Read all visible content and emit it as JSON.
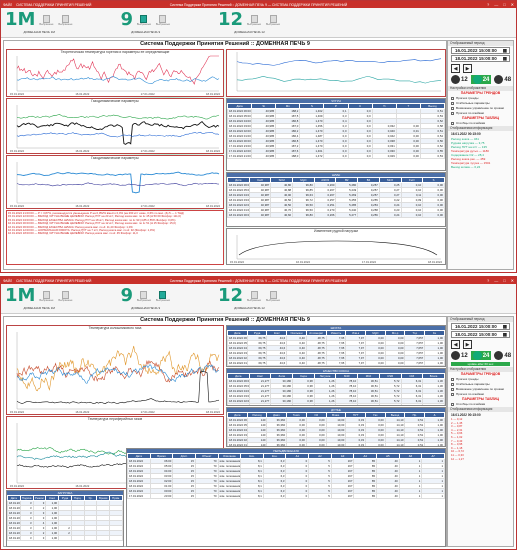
{
  "app": {
    "menu_tab": "ФАЙЛ",
    "doc_tab": "СИСТЕМА ПОДДЕРЖКИ ПРИНЯТИЯ РЕШЕНИЙ",
    "window_title": "Система Поддержки Принятия Решений :: ДОМЕННАЯ ПЕЧЬ 9 — СИСТЕМА ПОДДЕРЖКИ ПРИНЯТИЯ РЕШЕНИЙ",
    "controls": [
      "?",
      "—",
      "□",
      "✕"
    ]
  },
  "ribbon": {
    "groups": [
      {
        "num": "1M",
        "label": "ДОМЕННАЯ ПЕЧЬ 1М",
        "buttons": [
          "Выбранные",
          "Выбранные"
        ]
      },
      {
        "num": "9",
        "label": "ДОМЕННАЯ ПЕЧЬ 9",
        "buttons": [
          "Выбранные",
          "Выбранные"
        ]
      },
      {
        "num": "12",
        "label": "ДОМЕННАЯ ПЕЧЬ 12",
        "buttons": [
          "Выбранные",
          "Выбранные"
        ]
      }
    ]
  },
  "main": {
    "title": "Система Поддержки Принятия Решений :: ДОМЕННАЯ ПЕЧЬ 9"
  },
  "top": {
    "chart1_title": "Теоретическая температура горения и параметры ее определяющие",
    "chart2_title": "Газодинамические параметры",
    "chart3_title": "Газодинамические параметры",
    "chart4_title": "Изменение рудной нагрузки",
    "xlabels": [
      "15.01.2022",
      "16.01.2022",
      "17.01.2022",
      "18.01.2022"
    ],
    "messages": [
      "15.01.2022 21:00:00 — Р = 3,87%, рекомендуется уменьшение Р на 0,052% вместо 0,0% (на 260 кг/т ниже, 0,6% по мас. (Δ) 5 — 1 ТНД)",
      "15.01.2022 22:00:00 — ВЫХОД ЧУГУНА ВЫШЕ ЦЕЛЕВОЙ: Расход ПУТ на 23 кг/т, Расход кокса мас. по Δ: 45 (Δ 50 00 Фосфор: 111,0)",
      "15.01.2022 04:00:00 — ВЫХОД КАЧЕСТВА ШЛАКА: Расход ПУТ на 18 кг/т, Расход кокса мас. по Δ: 93 (4,85 2,55% Фосфор: 0,0%)",
      "16.01.2022 00:00:00 — ВЫХОД ЧУГУНА ВЫШЕ ЦЕЛЕВОЙ: Расход ПУТ на 12 кг/т, Расход кокса мас. по Δ: 51 (Δ 15 Фосфор: 15,0)",
      "16.01.2022 06:00:00 — ВЫХОД КАЧЕСТВА ШЛАКА: Расход кокса мас. по Δ: 11,20 Фосфор: 1,0%",
      "16.01.2022 12:00:00 — НОРМАЛЬНАЯ РАБОТА: Расход ПУТ на 7 кг/т, Расход кокса мас. по Δ: 32 (Фосфор: 1,0%)",
      "16.01.2022 18:00:00 — ВЫХОД ЧУГУНА ВЫШЕ ЦЕЛЕВОЙ: Расход кокса мас. по Δ: 45 Фосфор: 11,0"
    ],
    "table1": {
      "caption": "ЧУГУН",
      "headers": [
        "Дата",
        "Si",
        "Mn",
        "S",
        "P",
        "C",
        "Ti",
        "T",
        "Выход"
      ],
      "rows": [
        [
          "18.01.2022 06:00",
          "40,985",
          "188,2",
          "1,462",
          "0,1",
          "0,0",
          "",
          "",
          "0,51"
        ],
        [
          "18.01.2022 05:00",
          "40,985",
          "187,5",
          "1,469",
          "0,3",
          "0,0",
          "",
          "",
          "0,53"
        ],
        [
          "18.01.2022 04:00",
          "40,985",
          "186,8",
          "1,470",
          "0,4",
          "0,0",
          "",
          "",
          "0,52"
        ],
        [
          "18.01.2022 03:00",
          "40,985",
          "187,0",
          "1,456",
          "0,3",
          "0,0",
          "0,032",
          "0,00",
          "0,58"
        ],
        [
          "18.01.2022 02:00",
          "40,985",
          "186,2",
          "1,470",
          "0,0",
          "0,0",
          "0,040",
          "0,01",
          "0,51"
        ],
        [
          "18.01.2022 01:00",
          "40,985",
          "186,4",
          "1,487",
          "0,0",
          "0,0",
          "0,042",
          "0,00",
          "0,54"
        ],
        [
          "18.01.2022 00:00",
          "40,985",
          "186,8",
          "1,470",
          "0,0",
          "0,0",
          "0,038",
          "0,00",
          "0,56"
        ],
        [
          "17.01.2022 23:00",
          "40,985",
          "187,2",
          "1,470",
          "0,0",
          "0,0",
          "0,031",
          "0,00",
          "0,52"
        ],
        [
          "17.01.2022 22:00",
          "40,985",
          "187,6",
          "1,461",
          "0,0",
          "0,0",
          "0,030",
          "0,00",
          "0,55"
        ],
        [
          "17.01.2022 21:00",
          "40,985",
          "188,0",
          "1,472",
          "0,0",
          "0,0",
          "0,029",
          "0,00",
          "0,53"
        ]
      ]
    },
    "table2": {
      "caption": "ШЛАК",
      "headers": [
        "Дата",
        "CaO",
        "SiO2",
        "MgO",
        "Al2O3",
        "B2",
        "B4",
        "MnO",
        "FeO",
        "S"
      ],
      "rows": [
        [
          "18.01.2022 06:00",
          "40,987",
          "40,80",
          "96,80",
          "0,260",
          "5,280",
          "0,257",
          "0,25",
          "0,10",
          "0,00"
        ],
        [
          "18.01.2022 05:00",
          "40,987",
          "40,88",
          "96,85",
          "0,267",
          "5,249",
          "0,257",
          "0,27",
          "0,10",
          "0,00"
        ],
        [
          "18.01.2022 04:00",
          "40,987",
          "40,90",
          "96,63",
          "0,267",
          "5,269",
          "0,257",
          "0,27",
          "0,11",
          "0,00"
        ],
        [
          "18.01.2022 03:00",
          "40,987",
          "40,50",
          "96,72",
          "0,257",
          "5,255",
          "0,255",
          "0,22",
          "0,09",
          "0,00"
        ],
        [
          "18.01.2022 02:00",
          "40,987",
          "40,50",
          "96,50",
          "0,251",
          "5,285",
          "0,253",
          "0,24",
          "0,10",
          "0,00"
        ],
        [
          "18.01.2022 01:00",
          "40,987",
          "40,70",
          "96,50",
          "0,270",
          "5,240",
          "0,258",
          "0,23",
          "0,10",
          "0,00"
        ],
        [
          "18.01.2022 00:00",
          "40,987",
          "40,60",
          "96,80",
          "0,266",
          "5,277",
          "0,256",
          "0,24",
          "0,10",
          "0,00"
        ]
      ]
    }
  },
  "bottom": {
    "chart1_title": "Температура колошникового газа",
    "chart2_title": "Температура периферийных газов",
    "ylabel1": "Температура, °C",
    "xlabels": [
      "15.01.2022",
      "16.01.2022",
      "17.01.2022",
      "18.01.2022"
    ],
    "table_a": {
      "caption": "ШИХТА",
      "headers": [
        "Дата",
        "Руда",
        "Кокс",
        "Окатыши",
        "Агломерат",
        "Известь",
        "Изв-к",
        "MgO",
        "Mn-р",
        "Ti-р",
        "Fe"
      ],
      "rows": [
        [
          "18.01.2022 06:00",
          "69,75",
          "43,6",
          "0,40",
          "48,75",
          "7,65",
          "7,97",
          "0,00",
          "0,00",
          "7,657",
          "1,00"
        ],
        [
          "18.01.2022 05:00",
          "69,75",
          "43,6",
          "0,40",
          "48,75",
          "7,65",
          "7,97",
          "0,00",
          "0,00",
          "7,657",
          "1,00"
        ],
        [
          "18.01.2022 04:00",
          "69,75",
          "43,6",
          "0,40",
          "48,75",
          "7,65",
          "7,97",
          "0,00",
          "0,00",
          "7,657",
          "1,00"
        ],
        [
          "18.01.2022 03:00",
          "69,75",
          "43,6",
          "0,40",
          "48,75",
          "7,65",
          "7,97",
          "0,00",
          "0,00",
          "7,657",
          "1,00"
        ],
        [
          "18.01.2022 02:00",
          "69,75",
          "43,6",
          "0,40",
          "48,75",
          "7,65",
          "7,97",
          "0,00",
          "0,00",
          "7,657",
          "1,00"
        ],
        [
          "18.01.2022 01:00",
          "69,75",
          "43,6",
          "0,40",
          "48,75",
          "7,65",
          "7,97",
          "0,00",
          "0,00",
          "7,657",
          "1,00"
        ],
        [
          "18.01.2022 00:00",
          "69,75",
          "43,6",
          "0,40",
          "48,75",
          "7,65",
          "7,97",
          "0,00",
          "0,00",
          "7,657",
          "1,00"
        ],
        [
          "17.01.2022 23:00",
          "69,75",
          "43,6",
          "0,40",
          "48,75",
          "7,65",
          "7,97",
          "0,00",
          "0,00",
          "7,657",
          "1,00"
        ]
      ]
    },
    "table_b": {
      "caption": "КАЧЕСТВО КОКСА",
      "headers": [
        "Дата",
        "Кокс",
        "Зола",
        "Сера",
        "Летучие",
        "М40",
        "М10",
        "CSR",
        "CRI",
        "Влага"
      ],
      "rows": [
        [
          "18.01.2022 06:00",
          "21,277",
          "30,180",
          "0,38",
          "1,26",
          "78,10",
          "30,51",
          "5,72",
          "6,31",
          "1,30"
        ],
        [
          "18.01.2022 05:00",
          "21,277",
          "30,180",
          "0,38",
          "1,26",
          "78,10",
          "30,51",
          "5,72",
          "6,31",
          "1,30"
        ],
        [
          "18.01.2022 04:00",
          "21,277",
          "30,180",
          "0,38",
          "1,26",
          "78,10",
          "30,51",
          "5,72",
          "6,31",
          "1,30"
        ],
        [
          "18.01.2022 03:00",
          "21,277",
          "30,180",
          "0,38",
          "1,26",
          "78,10",
          "30,51",
          "5,72",
          "6,31",
          "1,30"
        ],
        [
          "18.01.2022 02:00",
          "21,277",
          "30,180",
          "0,38",
          "1,26",
          "78,10",
          "30,51",
          "5,72",
          "6,31",
          "1,30"
        ],
        [
          "18.01.2022 01:00",
          "21,277",
          "30,180",
          "0,38",
          "1,26",
          "78,10",
          "30,51",
          "5,72",
          "6,31",
          "1,30"
        ],
        [
          "18.01.2022 00:00",
          "21,277",
          "30,180",
          "0,38",
          "1,26",
          "78,10",
          "30,51",
          "5,72",
          "6,31",
          "1,30"
        ]
      ]
    },
    "table_c": {
      "caption": "ДУТЬЕ",
      "headers": [
        "Дата",
        "Расход",
        "Давл.",
        "Темп.",
        "O2",
        "Влаж.",
        "ПУТ",
        "Газ",
        "Выход",
        "Пр.",
        "Δ"
      ],
      "rows": [
        [
          "18.01.2022 06:00",
          "140",
          "36,360",
          "0,00",
          "0,00",
          "10,00",
          "0,33",
          "0,00",
          "14,10",
          "0,51",
          "1,00"
        ],
        [
          "18.01.2022 05:00",
          "140",
          "36,360",
          "0,00",
          "0,00",
          "10,00",
          "0,33",
          "0,00",
          "14,10",
          "0,51",
          "1,00"
        ],
        [
          "18.01.2022 04:00",
          "140",
          "36,360",
          "0,00",
          "0,00",
          "10,00",
          "0,33",
          "0,00",
          "14,10",
          "0,51",
          "1,00"
        ],
        [
          "18.01.2022 03:00",
          "140",
          "36,360",
          "0,00",
          "0,00",
          "10,00",
          "0,33",
          "0,00",
          "14,10",
          "0,51",
          "1,00"
        ],
        [
          "18.01.2022 02:00",
          "140",
          "36,360",
          "0,00",
          "0,00",
          "10,00",
          "0,33",
          "0,00",
          "14,10",
          "0,51",
          "1,00"
        ],
        [
          "18.01.2022 01:00",
          "140",
          "36,360",
          "0,00",
          "0,00",
          "10,00",
          "0,33",
          "0,00",
          "14,10",
          "0,51",
          "1,00"
        ],
        [
          "18.01.2022 00:00",
          "140",
          "36,360",
          "0,00",
          "0,00",
          "10,00",
          "0,33",
          "0,00",
          "14,10",
          "0,51",
          "1,00"
        ]
      ]
    },
    "table_d": {
      "caption": "ЗАГРУЗКА",
      "headers": [
        "Дата",
        "Подача",
        "Режим",
        "Кокс",
        "Руда",
        "Порц.",
        "Ур.",
        "Время",
        "Прим."
      ],
      "rows": [
        [
          "18.01.2022 12:00",
          "3",
          "3",
          "1,00",
          "",
          "",
          "",
          "",
          ""
        ],
        [
          "18.01.2022 11:00",
          "3",
          "2",
          "1,00",
          "",
          "",
          "",
          "",
          ""
        ],
        [
          "18.01.2022 10:00",
          "3",
          "3",
          "1,00",
          "",
          "",
          "",
          "",
          ""
        ],
        [
          "18.01.2022 09:00",
          "3",
          "3",
          "1,00",
          "",
          "",
          "",
          "",
          ""
        ],
        [
          "18.01.2022 08:00",
          "3",
          "4",
          "1,00",
          "",
          "",
          "",
          "",
          ""
        ],
        [
          "18.01.2022 07:00",
          "3",
          "3",
          "1,00",
          "2",
          "",
          "",
          "",
          ""
        ],
        [
          "18.01.2022 06:00",
          "3",
          "2",
          "1,00",
          "2",
          "",
          "",
          "",
          ""
        ],
        [
          "18.01.2022 05:00",
          "3",
          "3",
          "1,00",
          "",
          "",
          "",
          "",
          ""
        ]
      ]
    },
    "table_e": {
      "caption": "ПЕРЕДВИЖЕНИЯ",
      "headers": [
        "Дата",
        "Время",
        "Длит.",
        "Объект",
        "Описание",
        "Нач.",
        "Кон.",
        "Δ1",
        "Δ2",
        "Δ3",
        "Δ4",
        "Δ5",
        "Δ6",
        "Δ7"
      ],
      "rows": [
        [
          "18.01.2022",
          "06:00",
          "15",
          "70",
          "изм. положения шихты",
          "8,1",
          "6,3",
          "0",
          "5",
          "167",
          "85",
          "40",
          "1",
          "1"
        ],
        [
          "18.01.2022",
          "05:00",
          "15",
          "70",
          "изм. положения шихты",
          "8,1",
          "6,3",
          "0",
          "5",
          "167",
          "85",
          "40",
          "1",
          "1"
        ],
        [
          "18.01.2022",
          "04:00",
          "15",
          "70",
          "изм. положения шихты",
          "8,1",
          "6,3",
          "0",
          "5",
          "167",
          "85",
          "40",
          "1",
          "1"
        ],
        [
          "18.01.2022",
          "03:00",
          "15",
          "70",
          "изм. положения шихты",
          "8,1",
          "6,3",
          "0",
          "5",
          "167",
          "85",
          "40",
          "1",
          "1"
        ],
        [
          "18.01.2022",
          "02:00",
          "15",
          "70",
          "изм. положения шихты",
          "8,1",
          "6,3",
          "0",
          "5",
          "167",
          "85",
          "40",
          "1",
          "1"
        ],
        [
          "18.01.2022",
          "01:00",
          "15",
          "70",
          "изм. положения шихты",
          "8,1",
          "6,3",
          "0",
          "5",
          "167",
          "85",
          "40",
          "1",
          "1"
        ],
        [
          "18.01.2022",
          "00:00",
          "15",
          "70",
          "изм. положения шихты",
          "8,1",
          "6,3",
          "0",
          "5",
          "167",
          "85",
          "40",
          "1",
          "1"
        ],
        [
          "17.01.2022",
          "23:00",
          "15",
          "70",
          "изм. положения шихты",
          "8,1",
          "6,3",
          "0",
          "5",
          "167",
          "85",
          "40",
          "1",
          "1"
        ]
      ]
    }
  },
  "side": {
    "period_header": "Отображаемый период",
    "date_from": "16.01.2022 15:00:00",
    "date_to": "18.01.2022 15:00:00",
    "hours": [
      "12",
      "24",
      "48"
    ],
    "active_hour": "24",
    "update_note": "update after 60 sec",
    "display_header": "Настройки отображения",
    "params_title": "ПАРАМЕТРЫ ТРЕНДОВ",
    "checks": [
      "Прогноз тренды",
      "Стабильные параметры",
      "Возможное управление по срокам",
      "Прогноз по ячейкам"
    ],
    "params_title2": "ПАРАМЕТРЫ ТАБЛИЦ",
    "checks2": [
      "Столбцы по ячейкам"
    ],
    "info_header": "Отображаемая информация",
    "info_date": "16.01.2022 00:15:00",
    "info_lines": [
      "Расход кокса — 461",
      "Рудная нагрузка — 3,75",
      "Расход ПУТ на кг/т — 135",
      "Температура дутья — 1180",
      "Содержание O2 — 28,4",
      "Расход кокса рек. — 459",
      "Температура чугуна — 1501",
      "Выход шлака — 0,24"
    ],
    "codes_bottom": [
      "1 — 0,12",
      "2 — 1,45",
      "3 — 0,87",
      "4 — 2,31",
      "5 — 0,66",
      "6 — 1,02",
      "7 — 0,43",
      "8 — 0,95",
      "9 — 1,18",
      "10 — 0,72",
      "11 — 0,33",
      "12 — 1,27"
    ]
  },
  "colors": {
    "title_bar": "#c8302a",
    "accent": "#1a9a7a",
    "table_header": "#3a5f9a",
    "alert": "#d22222"
  }
}
